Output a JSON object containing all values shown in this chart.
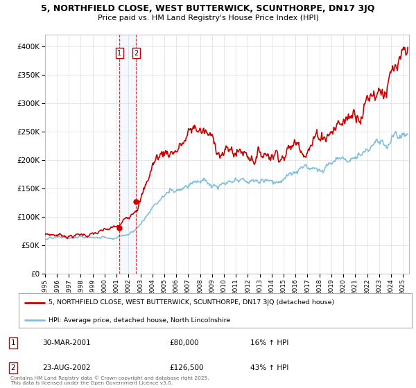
{
  "title1": "5, NORTHFIELD CLOSE, WEST BUTTERWICK, SCUNTHORPE, DN17 3JQ",
  "title2": "Price paid vs. HM Land Registry's House Price Index (HPI)",
  "ylabel_ticks": [
    "£0",
    "£50K",
    "£100K",
    "£150K",
    "£200K",
    "£250K",
    "£300K",
    "£350K",
    "£400K"
  ],
  "ytick_values": [
    0,
    50000,
    100000,
    150000,
    200000,
    250000,
    300000,
    350000,
    400000
  ],
  "ylim": [
    0,
    420000
  ],
  "xlim_start": 1995.0,
  "xlim_end": 2025.5,
  "purchase1_year": 2001.25,
  "purchase1_price": 80000,
  "purchase2_year": 2002.65,
  "purchase2_price": 126500,
  "hpi_color": "#7fbfdf",
  "price_color": "#cc0000",
  "legend1": "5, NORTHFIELD CLOSE, WEST BUTTERWICK, SCUNTHORPE, DN17 3JQ (detached house)",
  "legend2": "HPI: Average price, detached house, North Lincolnshire",
  "annotation1_label": "1",
  "annotation1_date": "30-MAR-2001",
  "annotation1_price": "£80,000",
  "annotation1_hpi": "16% ↑ HPI",
  "annotation2_label": "2",
  "annotation2_date": "23-AUG-2002",
  "annotation2_price": "£126,500",
  "annotation2_hpi": "43% ↑ HPI",
  "footer": "Contains HM Land Registry data © Crown copyright and database right 2025.\nThis data is licensed under the Open Government Licence v3.0.",
  "bg": "#ffffff",
  "grid_color": "#dddddd"
}
